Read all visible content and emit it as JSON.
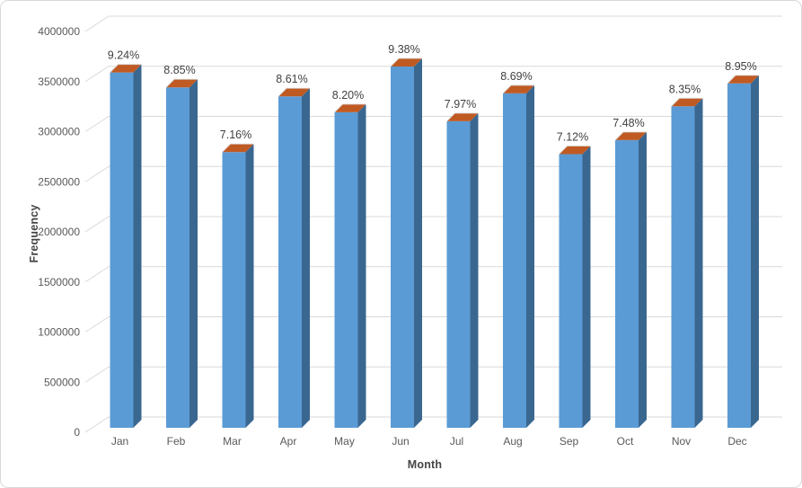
{
  "chart_data": {
    "type": "bar",
    "style": "3d-column",
    "title": "",
    "categories": [
      "Jan",
      "Feb",
      "Mar",
      "Apr",
      "May",
      "Jun",
      "Jul",
      "Aug",
      "Sep",
      "Oct",
      "Nov",
      "Dec"
    ],
    "values": [
      3570000,
      3420000,
      2770000,
      3330000,
      3170000,
      3630000,
      3080000,
      3360000,
      2750000,
      2890000,
      3230000,
      3460000
    ],
    "labels": [
      "9.24%",
      "8.85%",
      "7.16%",
      "8.61%",
      "8.20%",
      "9.38%",
      "7.97%",
      "8.69%",
      "7.12%",
      "7.48%",
      "8.35%",
      "8.95%"
    ],
    "xlabel": "Month",
    "ylabel": "Frequency",
    "ylim": [
      0,
      4000000
    ],
    "ytick_step": 500000,
    "yticks": [
      "0",
      "500000",
      "1000000",
      "1500000",
      "2000000",
      "2500000",
      "3000000",
      "3500000",
      "4000000"
    ],
    "grid": true,
    "legend": false,
    "colors": {
      "bar_front": "#5B9BD5",
      "bar_side": "#3A6790",
      "bar_top": "#C05A23",
      "bar_top_highlight": "#DADADA",
      "gridline": "#D9D9D9",
      "tick_label": "#595959",
      "data_label": "#3F3F3F",
      "axis_title": "#454545",
      "chart_border": "#D9D9D9",
      "background": "#FFFFFF"
    }
  }
}
